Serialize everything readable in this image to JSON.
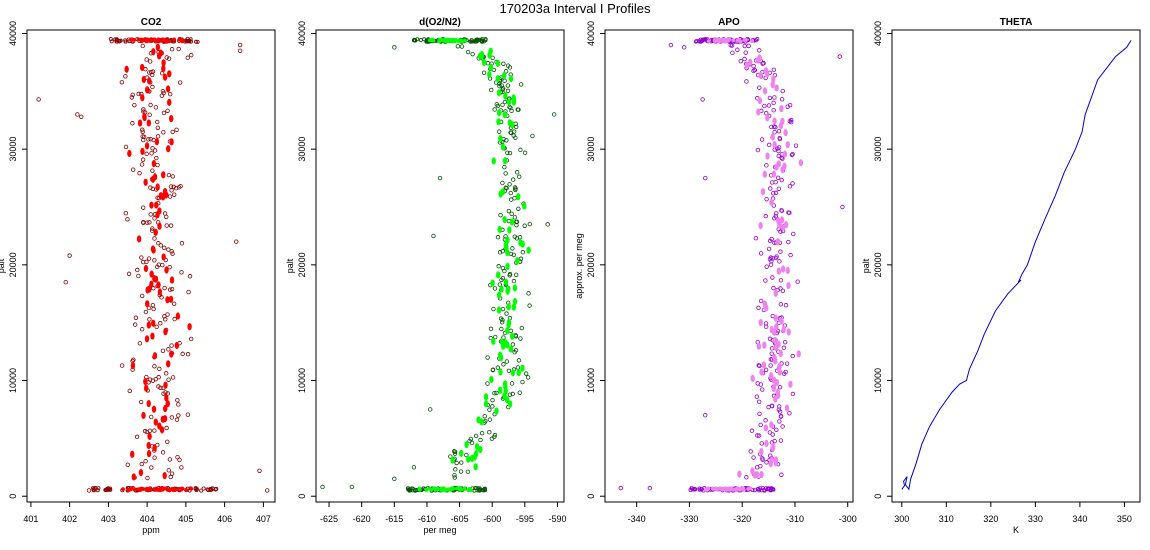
{
  "figure": {
    "title": "170203a   Interval I Profiles"
  },
  "chart_data": [
    {
      "type": "scatter",
      "title": "CO2",
      "xlabel": "ppm",
      "ylabel": "palt",
      "xlim": [
        400.9,
        407.3
      ],
      "ylim": [
        -500,
        40300
      ],
      "xticks": [
        401,
        402,
        403,
        404,
        405,
        406,
        407
      ],
      "yticks": [
        0,
        10000,
        20000,
        30000,
        40000
      ],
      "grid": false,
      "color": "#ff0000",
      "outline_color": "#8b0000",
      "profile": [
        [
          0,
          404.3
        ],
        [
          5000,
          404.3
        ],
        [
          10000,
          404.2
        ],
        [
          15000,
          404.3
        ],
        [
          20000,
          404.2
        ],
        [
          25000,
          404.3
        ],
        [
          30000,
          404.3
        ],
        [
          35000,
          404.2
        ],
        [
          39400,
          404.3
        ]
      ],
      "spread": 0.75,
      "clusters": [
        [
          600,
          404.2,
          1.6
        ],
        [
          39400,
          404.2,
          1.2
        ]
      ],
      "outliers": [
        [
          34300,
          401.2
        ],
        [
          33000,
          402.2
        ],
        [
          32800,
          402.3
        ],
        [
          20800,
          402.0
        ],
        [
          18500,
          401.9
        ],
        [
          500,
          402.5
        ],
        [
          22000,
          406.3
        ],
        [
          39000,
          406.4
        ],
        [
          38500,
          406.4
        ],
        [
          2200,
          406.9
        ],
        [
          500,
          407.1
        ]
      ]
    },
    {
      "type": "scatter",
      "title": "d(O2/N2)",
      "xlabel": "per meg",
      "ylabel": "palt",
      "xlim": [
        -627,
        -589
      ],
      "ylim": [
        -500,
        40300
      ],
      "xticks": [
        -625,
        -620,
        -615,
        -610,
        -605,
        -600,
        -595,
        -590
      ],
      "yticks": [
        0,
        10000,
        20000,
        30000,
        40000
      ],
      "grid": false,
      "color": "#00ff00",
      "outline_color": "#005500",
      "profile": [
        [
          500,
          -607.5
        ],
        [
          2000,
          -606.0
        ],
        [
          4000,
          -603.5
        ],
        [
          6000,
          -602.0
        ],
        [
          8000,
          -599.5
        ],
        [
          10000,
          -598.0
        ],
        [
          14000,
          -597.5
        ],
        [
          18000,
          -598.0
        ],
        [
          22000,
          -597.0
        ],
        [
          26000,
          -597.5
        ],
        [
          30000,
          -597.0
        ],
        [
          34000,
          -597.5
        ],
        [
          37000,
          -599.0
        ],
        [
          39400,
          -604.5
        ]
      ],
      "spread": 2.8,
      "clusters": [
        [
          600,
          -607.0,
          6.0
        ],
        [
          39400,
          -606.5,
          5.5
        ]
      ],
      "outliers": [
        [
          800,
          -626.0
        ],
        [
          800,
          -621.5
        ],
        [
          1500,
          -615.0
        ],
        [
          2500,
          -612.0
        ],
        [
          7500,
          -609.5
        ],
        [
          22500,
          -609.0
        ],
        [
          27500,
          -608.0
        ],
        [
          38800,
          -615.0
        ],
        [
          33000,
          -590.5
        ],
        [
          23500,
          -591.5
        ]
      ]
    },
    {
      "type": "scatter",
      "title": "APO",
      "xlabel": "",
      "ylabel": "approx. per meg",
      "xlim": [
        -346,
        -299
      ],
      "ylim": [
        -500,
        40300
      ],
      "xticks": [
        -340,
        -330,
        -320,
        -310,
        -300
      ],
      "yticks": [
        0,
        10000,
        20000,
        30000,
        40000
      ],
      "grid": false,
      "color": "#ee82ee",
      "outline_color": "#9400d3",
      "profile": [
        [
          500,
          -318.0
        ],
        [
          5000,
          -314.5
        ],
        [
          10000,
          -314.0
        ],
        [
          15000,
          -313.5
        ],
        [
          20000,
          -313.5
        ],
        [
          25000,
          -313.5
        ],
        [
          30000,
          -313.0
        ],
        [
          35000,
          -314.0
        ],
        [
          39400,
          -321.0
        ]
      ],
      "spread": 3.8,
      "clusters": [
        [
          600,
          -322.0,
          8.0
        ],
        [
          39400,
          -323.0,
          6.0
        ]
      ],
      "outliers": [
        [
          700,
          -343.0
        ],
        [
          700,
          -337.5
        ],
        [
          39000,
          -333.5
        ],
        [
          38800,
          -331.0
        ],
        [
          34300,
          -327.5
        ],
        [
          27500,
          -327.0
        ],
        [
          7000,
          -327.0
        ],
        [
          25000,
          -301.0
        ],
        [
          38000,
          -301.5
        ]
      ]
    },
    {
      "type": "line",
      "title": "THETA",
      "xlabel": "K",
      "ylabel": "palt",
      "xlim": [
        297.8,
        353.5
      ],
      "ylim": [
        -500,
        40300
      ],
      "xticks": [
        300,
        310,
        320,
        330,
        340,
        350
      ],
      "yticks": [
        0,
        10000,
        20000,
        30000,
        40000
      ],
      "grid": false,
      "color": "#0000cd",
      "y": [
        600,
        900,
        1300,
        1700,
        1000,
        600,
        1500,
        2800,
        4500,
        6000,
        7500,
        9000,
        9700,
        10000,
        11000,
        12500,
        14000,
        16000,
        17500,
        18300,
        18700,
        18500,
        19200,
        20000,
        22000,
        24000,
        26000,
        28000,
        30000,
        31500,
        33000,
        34500,
        36000,
        37000,
        38000,
        38800,
        39400
      ],
      "x": [
        300.0,
        300.6,
        300.4,
        301.2,
        300.8,
        301.6,
        302.0,
        303.2,
        304.5,
        306.2,
        308.5,
        311.3,
        313.0,
        314.5,
        315.2,
        317.0,
        318.5,
        321.0,
        323.8,
        325.8,
        326.8,
        326.2,
        327.0,
        328.2,
        330.0,
        332.2,
        334.5,
        336.5,
        339.0,
        340.5,
        341.2,
        342.6,
        344.0,
        346.0,
        348.0,
        350.5,
        351.5
      ]
    }
  ]
}
